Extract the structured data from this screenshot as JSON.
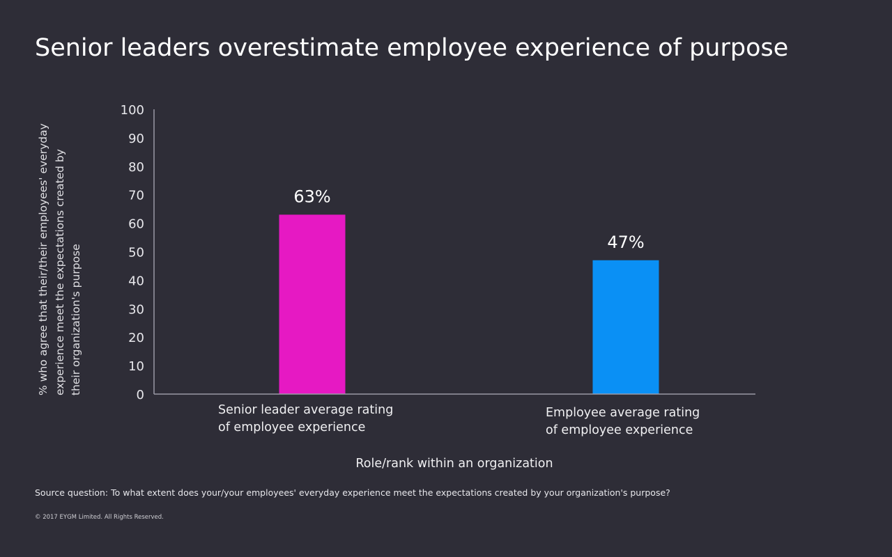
{
  "chart_data": {
    "type": "bar",
    "title": "Senior leaders overestimate employee experience of purpose",
    "ylabel_lines": [
      "% who agree that their/their employees' everyday",
      "experience meet the expectations created by",
      "their organization's purpose"
    ],
    "xlabel": "Role/rank within an organization",
    "ylim": [
      0,
      100
    ],
    "yticks": [
      0,
      10,
      20,
      30,
      40,
      50,
      60,
      70,
      80,
      90,
      100
    ],
    "grid": false,
    "categories": [
      [
        "Senior leader average rating",
        "of employee experience"
      ],
      [
        "Employee average rating",
        "of employee experience"
      ]
    ],
    "values": [
      63,
      47
    ],
    "data_labels": [
      "63%",
      "47%"
    ],
    "colors": [
      "#e619c3",
      "#0a90f5"
    ]
  },
  "footer": {
    "source": "Source question: To what extent does your/your employees' everyday experience meet the expectations created by your organization's purpose?",
    "copyright": "© 2017 EYGM Limited. All Rights Reserved."
  },
  "colors": {
    "background": "#2e2d37",
    "axis": "#9a9aa6"
  }
}
